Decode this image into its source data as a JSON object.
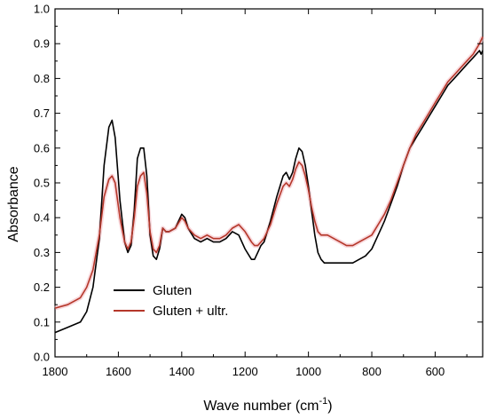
{
  "chart_data": {
    "type": "line",
    "xlabel": "Wave number (cm",
    "xlabel_sup": "-1",
    "xlabel_end": ")",
    "ylabel": "Absorbance",
    "xlim": [
      1800,
      450
    ],
    "ylim": [
      0.0,
      1.0
    ],
    "x_reversed": true,
    "x_ticks": [
      1800,
      1600,
      1400,
      1200,
      1000,
      800,
      600
    ],
    "y_ticks": [
      0.0,
      0.1,
      0.2,
      0.3,
      0.4,
      0.5,
      0.6,
      0.7,
      0.8,
      0.9,
      1.0
    ],
    "y_tick_labels": [
      "0.0",
      "0.1",
      "0.2",
      "0.3",
      "0.4",
      "0.5",
      "0.6",
      "0.7",
      "0.8",
      "0.9",
      "1.0"
    ],
    "x_tick_labels": [
      "1800",
      "1600",
      "1400",
      "1200",
      "1000",
      "800",
      "600"
    ],
    "grid": false,
    "legend_position": "bottom-left",
    "series": [
      {
        "name": "Gluten",
        "color": "#000000",
        "x": [
          1800,
          1760,
          1720,
          1700,
          1680,
          1660,
          1645,
          1630,
          1620,
          1610,
          1595,
          1580,
          1570,
          1560,
          1550,
          1540,
          1530,
          1520,
          1510,
          1500,
          1490,
          1480,
          1470,
          1460,
          1450,
          1440,
          1420,
          1400,
          1390,
          1380,
          1360,
          1340,
          1320,
          1300,
          1280,
          1260,
          1240,
          1220,
          1200,
          1180,
          1170,
          1160,
          1150,
          1140,
          1120,
          1100,
          1080,
          1070,
          1060,
          1050,
          1040,
          1030,
          1020,
          1010,
          1000,
          990,
          980,
          970,
          960,
          950,
          940,
          920,
          900,
          880,
          860,
          840,
          820,
          800,
          780,
          760,
          740,
          720,
          700,
          680,
          660,
          640,
          620,
          600,
          580,
          560,
          540,
          520,
          500,
          480,
          460,
          455,
          450
        ],
        "y": [
          0.07,
          0.085,
          0.1,
          0.13,
          0.2,
          0.34,
          0.55,
          0.66,
          0.68,
          0.63,
          0.45,
          0.33,
          0.3,
          0.32,
          0.42,
          0.57,
          0.6,
          0.6,
          0.52,
          0.35,
          0.29,
          0.28,
          0.31,
          0.37,
          0.36,
          0.36,
          0.37,
          0.41,
          0.4,
          0.37,
          0.34,
          0.33,
          0.34,
          0.33,
          0.33,
          0.34,
          0.36,
          0.35,
          0.31,
          0.28,
          0.28,
          0.3,
          0.32,
          0.33,
          0.39,
          0.46,
          0.52,
          0.53,
          0.51,
          0.53,
          0.57,
          0.6,
          0.59,
          0.55,
          0.49,
          0.42,
          0.35,
          0.3,
          0.28,
          0.27,
          0.27,
          0.27,
          0.27,
          0.27,
          0.27,
          0.28,
          0.29,
          0.31,
          0.35,
          0.39,
          0.44,
          0.49,
          0.55,
          0.6,
          0.63,
          0.66,
          0.69,
          0.72,
          0.75,
          0.78,
          0.8,
          0.82,
          0.84,
          0.86,
          0.88,
          0.87,
          0.88
        ]
      },
      {
        "name": "Gluten + ultr.",
        "color": "#b5372a",
        "x": [
          1800,
          1760,
          1720,
          1700,
          1680,
          1660,
          1645,
          1630,
          1620,
          1610,
          1595,
          1580,
          1570,
          1560,
          1550,
          1540,
          1530,
          1520,
          1510,
          1500,
          1490,
          1480,
          1470,
          1460,
          1450,
          1440,
          1420,
          1400,
          1390,
          1380,
          1360,
          1340,
          1320,
          1300,
          1280,
          1260,
          1240,
          1220,
          1200,
          1180,
          1170,
          1160,
          1150,
          1140,
          1120,
          1100,
          1080,
          1070,
          1060,
          1050,
          1040,
          1030,
          1020,
          1010,
          1000,
          990,
          980,
          970,
          960,
          950,
          940,
          920,
          900,
          880,
          860,
          840,
          820,
          800,
          780,
          760,
          740,
          720,
          700,
          680,
          660,
          640,
          620,
          600,
          580,
          560,
          540,
          520,
          500,
          480,
          460,
          455,
          450
        ],
        "y": [
          0.14,
          0.15,
          0.17,
          0.2,
          0.25,
          0.35,
          0.46,
          0.51,
          0.52,
          0.5,
          0.4,
          0.33,
          0.31,
          0.33,
          0.4,
          0.49,
          0.52,
          0.53,
          0.47,
          0.36,
          0.31,
          0.3,
          0.32,
          0.37,
          0.36,
          0.36,
          0.37,
          0.4,
          0.39,
          0.37,
          0.35,
          0.34,
          0.35,
          0.34,
          0.34,
          0.35,
          0.37,
          0.38,
          0.36,
          0.33,
          0.32,
          0.32,
          0.33,
          0.34,
          0.38,
          0.44,
          0.49,
          0.5,
          0.49,
          0.51,
          0.54,
          0.56,
          0.55,
          0.52,
          0.48,
          0.43,
          0.39,
          0.36,
          0.35,
          0.35,
          0.35,
          0.34,
          0.33,
          0.32,
          0.32,
          0.33,
          0.34,
          0.35,
          0.38,
          0.41,
          0.45,
          0.5,
          0.55,
          0.6,
          0.64,
          0.67,
          0.7,
          0.73,
          0.76,
          0.79,
          0.81,
          0.83,
          0.85,
          0.87,
          0.9,
          0.91,
          0.92
        ]
      }
    ]
  }
}
